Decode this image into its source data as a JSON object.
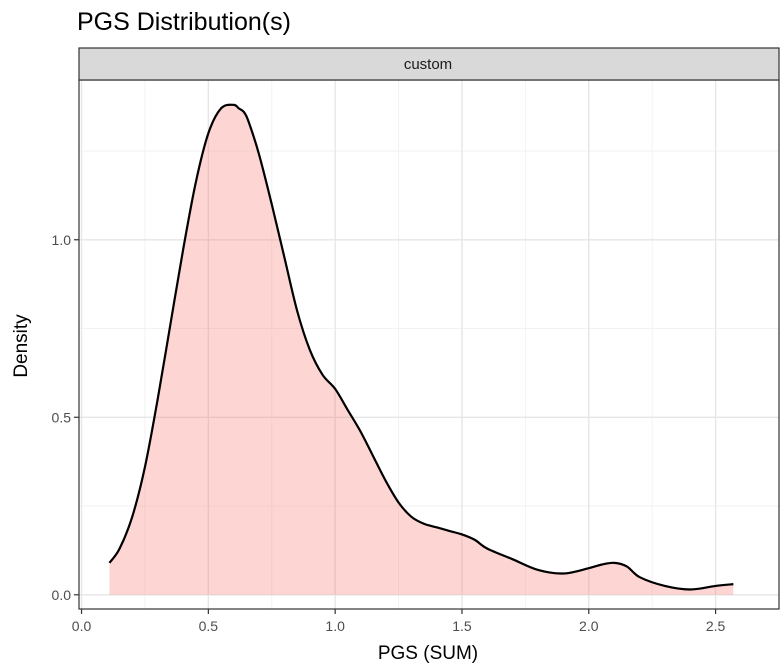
{
  "chart_data": {
    "type": "area",
    "title": "PGS Distribution(s)",
    "facet_label": "custom",
    "xlabel": "PGS (SUM)",
    "ylabel": "Density",
    "xlim": [
      -0.01,
      2.75
    ],
    "ylim": [
      -0.04,
      1.45
    ],
    "x_ticks": [
      0.0,
      0.5,
      1.0,
      1.5,
      2.0,
      2.5
    ],
    "x_tick_labels": [
      "0.0",
      "0.5",
      "1.0",
      "1.5",
      "2.0",
      "2.5"
    ],
    "y_ticks": [
      0.0,
      0.5,
      1.0
    ],
    "y_tick_labels": [
      "0.0",
      "0.5",
      "1.0"
    ],
    "grid": true,
    "fill_color": "#f8766d",
    "fill_opacity": 0.3,
    "line_color": "#000000",
    "series": [
      {
        "x": [
          0.11,
          0.15,
          0.2,
          0.25,
          0.3,
          0.35,
          0.4,
          0.45,
          0.5,
          0.55,
          0.6,
          0.62,
          0.64,
          0.66,
          0.7,
          0.75,
          0.8,
          0.85,
          0.9,
          0.95,
          1.0,
          1.05,
          1.1,
          1.15,
          1.2,
          1.25,
          1.3,
          1.35,
          1.4,
          1.45,
          1.5,
          1.55,
          1.6,
          1.7,
          1.8,
          1.9,
          2.0,
          2.05,
          2.1,
          2.15,
          2.2,
          2.3,
          2.4,
          2.5,
          2.57
        ],
        "y": [
          0.09,
          0.13,
          0.22,
          0.36,
          0.55,
          0.76,
          0.97,
          1.16,
          1.3,
          1.37,
          1.38,
          1.37,
          1.36,
          1.33,
          1.24,
          1.1,
          0.95,
          0.8,
          0.69,
          0.62,
          0.58,
          0.52,
          0.46,
          0.39,
          0.32,
          0.26,
          0.22,
          0.2,
          0.19,
          0.18,
          0.17,
          0.155,
          0.13,
          0.1,
          0.07,
          0.06,
          0.075,
          0.085,
          0.09,
          0.08,
          0.05,
          0.025,
          0.015,
          0.025,
          0.03
        ]
      }
    ]
  }
}
